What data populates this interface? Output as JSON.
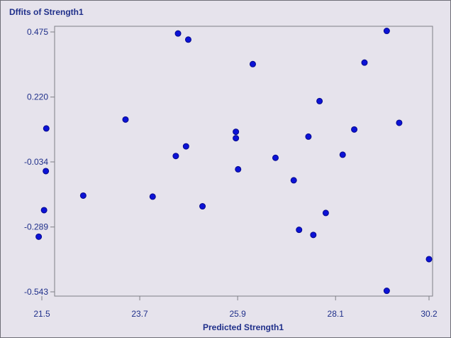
{
  "colors": {
    "background": "#e6e3ec",
    "plot_border": "#7f7f86",
    "text": "#1f2f8a",
    "point_fill": "#0c12d6",
    "point_stroke": "#05098c"
  },
  "chart_data": {
    "type": "scatter",
    "title": "Dffits of Strength1",
    "xlabel": "Predicted Strength1",
    "ylabel": "",
    "xlim": [
      21.5,
      30.2
    ],
    "ylim": [
      -0.543,
      0.475
    ],
    "xticks": [
      "21.5",
      "23.7",
      "25.9",
      "28.1",
      "30.2"
    ],
    "yticks": [
      "0.475",
      "0.220",
      "-0.034",
      "-0.289",
      "-0.543"
    ],
    "grid": false,
    "legend": "none",
    "points": [
      {
        "x": 21.43,
        "y": -0.327
      },
      {
        "x": 21.55,
        "y": -0.223
      },
      {
        "x": 21.6,
        "y": 0.097
      },
      {
        "x": 21.59,
        "y": -0.07
      },
      {
        "x": 22.43,
        "y": -0.166
      },
      {
        "x": 23.38,
        "y": 0.132
      },
      {
        "x": 23.99,
        "y": -0.17
      },
      {
        "x": 24.51,
        "y": -0.011
      },
      {
        "x": 24.56,
        "y": 0.469
      },
      {
        "x": 24.74,
        "y": 0.027
      },
      {
        "x": 24.79,
        "y": 0.445
      },
      {
        "x": 25.11,
        "y": -0.208
      },
      {
        "x": 25.86,
        "y": 0.084
      },
      {
        "x": 25.86,
        "y": 0.059
      },
      {
        "x": 25.91,
        "y": -0.063
      },
      {
        "x": 26.24,
        "y": 0.349
      },
      {
        "x": 26.75,
        "y": -0.018
      },
      {
        "x": 27.16,
        "y": -0.106
      },
      {
        "x": 27.28,
        "y": -0.3
      },
      {
        "x": 27.49,
        "y": 0.065
      },
      {
        "x": 27.6,
        "y": -0.32
      },
      {
        "x": 27.74,
        "y": 0.204
      },
      {
        "x": 27.88,
        "y": -0.234
      },
      {
        "x": 28.26,
        "y": -0.006
      },
      {
        "x": 28.52,
        "y": 0.093
      },
      {
        "x": 28.75,
        "y": 0.355
      },
      {
        "x": 29.25,
        "y": 0.479
      },
      {
        "x": 29.25,
        "y": -0.539
      },
      {
        "x": 29.53,
        "y": 0.119
      },
      {
        "x": 30.2,
        "y": -0.415
      }
    ]
  }
}
